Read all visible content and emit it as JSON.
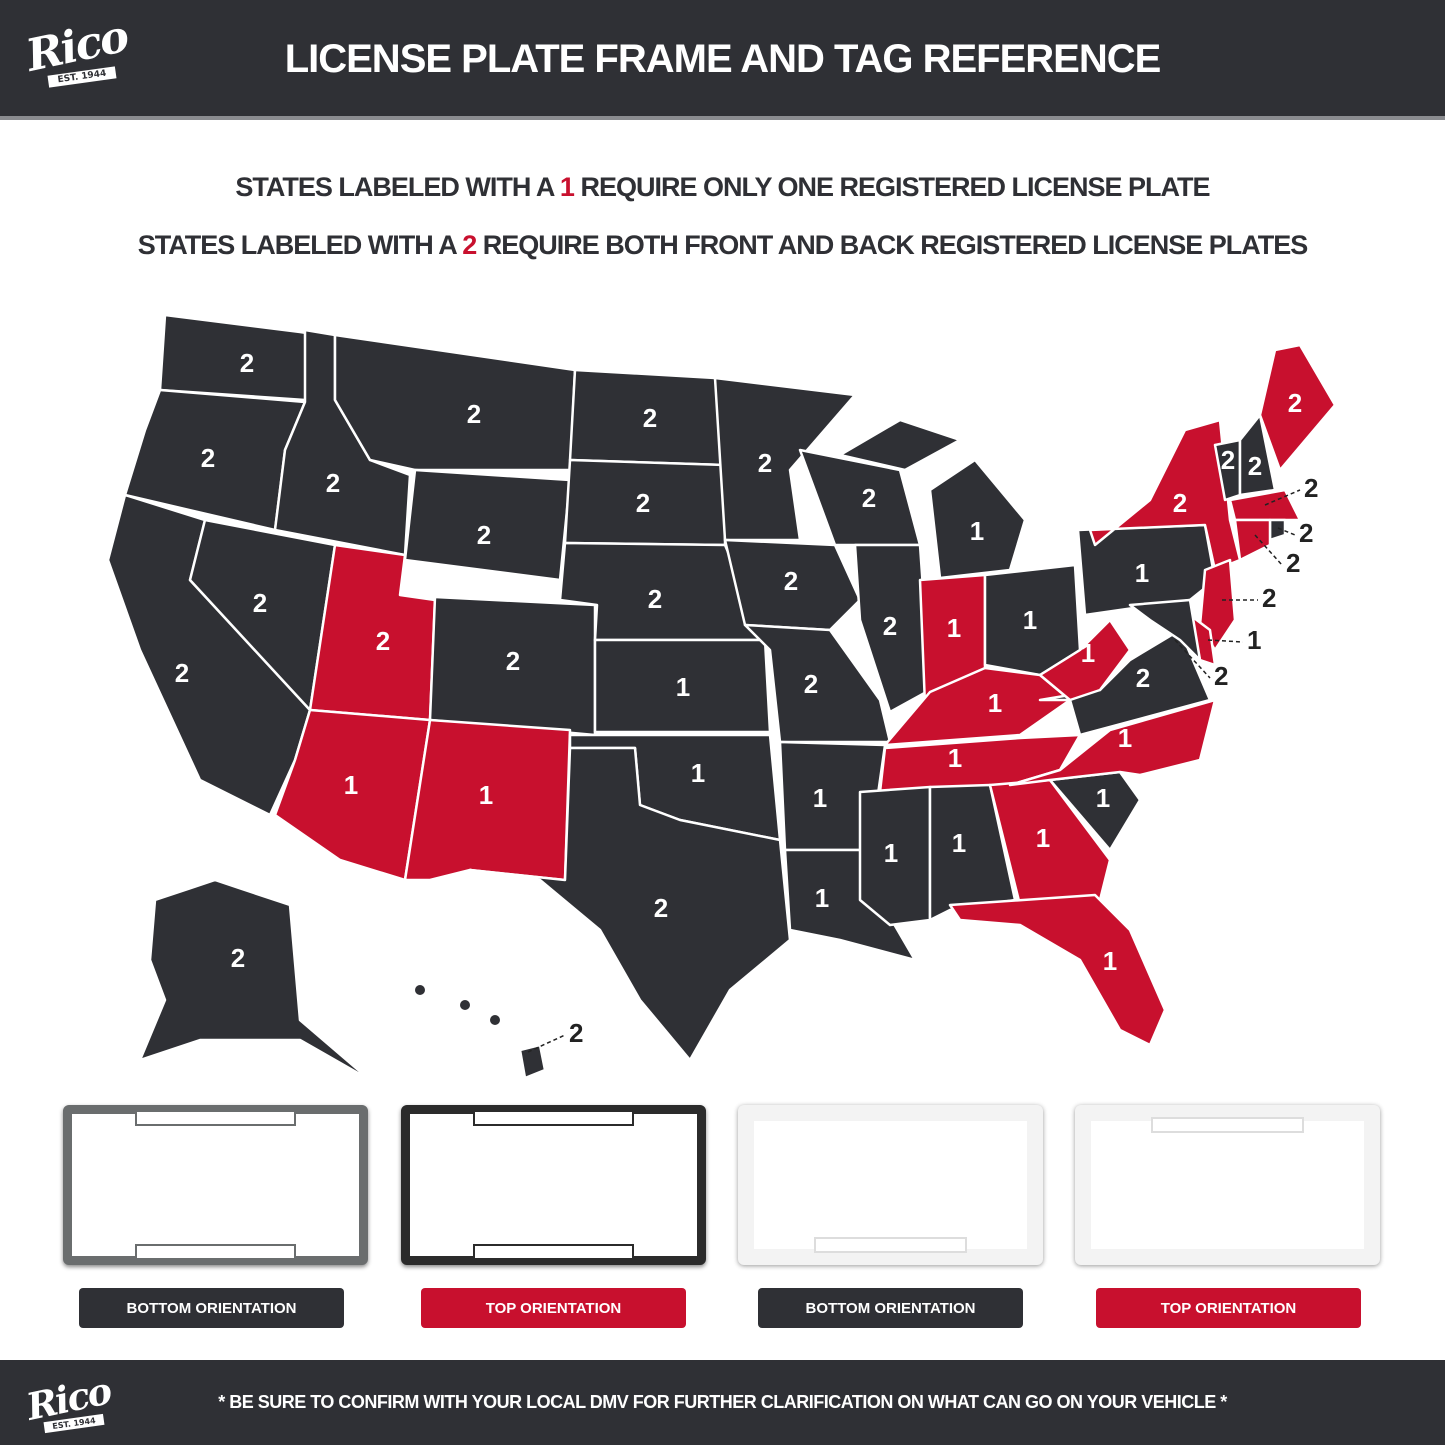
{
  "header": {
    "title": "LICENSE PLATE FRAME AND TAG REFERENCE",
    "logo": {
      "word": "Rico",
      "est": "EST. 1944"
    }
  },
  "subtitle": {
    "line1": {
      "before": "STATES LABELED WITH A ",
      "num": "1",
      "after": " REQUIRE ONLY ONE REGISTERED LICENSE PLATE"
    },
    "line2": {
      "before": "STATES LABELED WITH A ",
      "num": "2",
      "after": " REQUIRE BOTH FRONT AND BACK REGISTERED LICENSE PLATES"
    }
  },
  "colors": {
    "dark": "#2f3035",
    "red": "#c8102e",
    "white": "#ffffff"
  },
  "map": {
    "states": [
      {
        "id": "WA",
        "plates": 2,
        "color": "dark"
      },
      {
        "id": "OR",
        "plates": 2,
        "color": "dark"
      },
      {
        "id": "CA",
        "plates": 2,
        "color": "dark"
      },
      {
        "id": "NV",
        "plates": 2,
        "color": "dark"
      },
      {
        "id": "ID",
        "plates": 2,
        "color": "dark"
      },
      {
        "id": "MT",
        "plates": 2,
        "color": "dark"
      },
      {
        "id": "WY",
        "plates": 2,
        "color": "dark"
      },
      {
        "id": "UT",
        "plates": 2,
        "color": "red"
      },
      {
        "id": "CO",
        "plates": 2,
        "color": "dark"
      },
      {
        "id": "AZ",
        "plates": 1,
        "color": "red"
      },
      {
        "id": "NM",
        "plates": 1,
        "color": "red"
      },
      {
        "id": "ND",
        "plates": 2,
        "color": "dark"
      },
      {
        "id": "SD",
        "plates": 2,
        "color": "dark"
      },
      {
        "id": "NE",
        "plates": 2,
        "color": "dark"
      },
      {
        "id": "KS",
        "plates": 1,
        "color": "dark"
      },
      {
        "id": "OK",
        "plates": 1,
        "color": "dark"
      },
      {
        "id": "TX",
        "plates": 2,
        "color": "dark"
      },
      {
        "id": "MN",
        "plates": 2,
        "color": "dark"
      },
      {
        "id": "IA",
        "plates": 2,
        "color": "dark"
      },
      {
        "id": "MO",
        "plates": 2,
        "color": "dark"
      },
      {
        "id": "AR",
        "plates": 1,
        "color": "dark"
      },
      {
        "id": "LA",
        "plates": 1,
        "color": "dark"
      },
      {
        "id": "WI",
        "plates": 2,
        "color": "dark"
      },
      {
        "id": "IL",
        "plates": 2,
        "color": "dark"
      },
      {
        "id": "MI",
        "plates": 1,
        "color": "dark"
      },
      {
        "id": "IN",
        "plates": 1,
        "color": "red"
      },
      {
        "id": "OH",
        "plates": 1,
        "color": "dark"
      },
      {
        "id": "KY",
        "plates": 1,
        "color": "red"
      },
      {
        "id": "TN",
        "plates": 1,
        "color": "red"
      },
      {
        "id": "MS",
        "plates": 1,
        "color": "dark"
      },
      {
        "id": "AL",
        "plates": 1,
        "color": "dark"
      },
      {
        "id": "GA",
        "plates": 1,
        "color": "red"
      },
      {
        "id": "FL",
        "plates": 1,
        "color": "red"
      },
      {
        "id": "SC",
        "plates": 1,
        "color": "dark"
      },
      {
        "id": "NC",
        "plates": 1,
        "color": "red"
      },
      {
        "id": "VA",
        "plates": 2,
        "color": "dark"
      },
      {
        "id": "WV",
        "plates": 1,
        "color": "red"
      },
      {
        "id": "PA",
        "plates": 1,
        "color": "dark"
      },
      {
        "id": "NY",
        "plates": 2,
        "color": "red"
      },
      {
        "id": "NJ",
        "plates": 2,
        "color": "red"
      },
      {
        "id": "DE",
        "plates": 1,
        "color": "red"
      },
      {
        "id": "MD",
        "plates": 2,
        "color": "dark"
      },
      {
        "id": "VT",
        "plates": 2,
        "color": "dark"
      },
      {
        "id": "NH",
        "plates": 2,
        "color": "dark"
      },
      {
        "id": "ME",
        "plates": 2,
        "color": "red"
      },
      {
        "id": "MA",
        "plates": 2,
        "color": "red"
      },
      {
        "id": "RI",
        "plates": 2,
        "color": "dark"
      },
      {
        "id": "CT",
        "plates": 2,
        "color": "red"
      },
      {
        "id": "AK",
        "plates": 2,
        "color": "dark"
      },
      {
        "id": "HI",
        "plates": 2,
        "color": "dark"
      }
    ]
  },
  "frames": [
    {
      "label": "BOTTOM ORIENTATION",
      "style": "dark-metal",
      "label_color": "dark"
    },
    {
      "label": "TOP ORIENTATION",
      "style": "chrome",
      "label_color": "red"
    },
    {
      "label": "BOTTOM ORIENTATION",
      "style": "white",
      "label_color": "dark"
    },
    {
      "label": "TOP ORIENTATION",
      "style": "white",
      "label_color": "red"
    }
  ],
  "footer": {
    "note": "* BE SURE TO CONFIRM WITH YOUR LOCAL DMV FOR FURTHER CLARIFICATION ON WHAT CAN GO ON YOUR VEHICLE *",
    "logo": {
      "word": "Rico",
      "est": "EST. 1944"
    }
  }
}
